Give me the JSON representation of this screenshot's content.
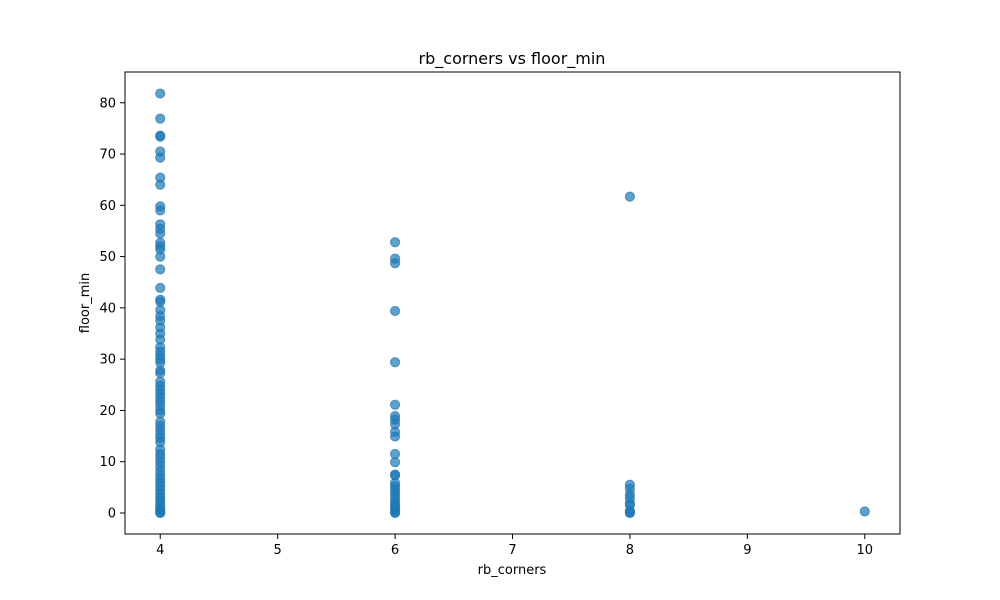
{
  "chart_data": {
    "type": "scatter",
    "title": "rb_corners vs floor_min",
    "xlabel": "rb_corners",
    "ylabel": "floor_min",
    "xlim": [
      3.7,
      10.3
    ],
    "ylim": [
      -4.1,
      86.0
    ],
    "xticks": [
      4,
      5,
      6,
      7,
      8,
      9,
      10
    ],
    "yticks": [
      0,
      10,
      20,
      30,
      40,
      50,
      60,
      70,
      80
    ],
    "grid": false,
    "marker_color": "#1f77b4",
    "marker_alpha": 0.7,
    "points": [
      {
        "x": 4,
        "y": 81.8
      },
      {
        "x": 4,
        "y": 76.9
      },
      {
        "x": 4,
        "y": 73.6
      },
      {
        "x": 4,
        "y": 73.4
      },
      {
        "x": 4,
        "y": 70.5
      },
      {
        "x": 4,
        "y": 69.3
      },
      {
        "x": 4,
        "y": 65.4
      },
      {
        "x": 4,
        "y": 64.0
      },
      {
        "x": 4,
        "y": 59.8
      },
      {
        "x": 4,
        "y": 59.0
      },
      {
        "x": 4,
        "y": 56.3
      },
      {
        "x": 4,
        "y": 55.4
      },
      {
        "x": 4,
        "y": 54.5
      },
      {
        "x": 4,
        "y": 52.7
      },
      {
        "x": 4,
        "y": 52.0
      },
      {
        "x": 4,
        "y": 51.4
      },
      {
        "x": 4,
        "y": 50.0
      },
      {
        "x": 4,
        "y": 47.5
      },
      {
        "x": 4,
        "y": 43.9
      },
      {
        "x": 4,
        "y": 41.6
      },
      {
        "x": 4,
        "y": 41.2
      },
      {
        "x": 4,
        "y": 39.6
      },
      {
        "x": 4,
        "y": 38.4
      },
      {
        "x": 4,
        "y": 37.5
      },
      {
        "x": 4,
        "y": 36.2
      },
      {
        "x": 4,
        "y": 35.0
      },
      {
        "x": 4,
        "y": 33.8
      },
      {
        "x": 4,
        "y": 32.3
      },
      {
        "x": 4,
        "y": 31.5
      },
      {
        "x": 4,
        "y": 30.7
      },
      {
        "x": 4,
        "y": 30.0
      },
      {
        "x": 4,
        "y": 29.3
      },
      {
        "x": 4,
        "y": 27.8
      },
      {
        "x": 4,
        "y": 27.3
      },
      {
        "x": 4,
        "y": 25.6
      },
      {
        "x": 4,
        "y": 24.8
      },
      {
        "x": 4,
        "y": 24.0
      },
      {
        "x": 4,
        "y": 23.3
      },
      {
        "x": 4,
        "y": 22.5
      },
      {
        "x": 4,
        "y": 21.7
      },
      {
        "x": 4,
        "y": 20.9
      },
      {
        "x": 4,
        "y": 20.0
      },
      {
        "x": 4,
        "y": 19.4
      },
      {
        "x": 4,
        "y": 17.8
      },
      {
        "x": 4,
        "y": 17.0
      },
      {
        "x": 4,
        "y": 16.2
      },
      {
        "x": 4,
        "y": 15.3
      },
      {
        "x": 4,
        "y": 14.6
      },
      {
        "x": 4,
        "y": 13.8
      },
      {
        "x": 4,
        "y": 12.4
      },
      {
        "x": 4,
        "y": 11.5
      },
      {
        "x": 4,
        "y": 10.8
      },
      {
        "x": 4,
        "y": 9.9
      },
      {
        "x": 4,
        "y": 9.1
      },
      {
        "x": 4,
        "y": 8.2
      },
      {
        "x": 4,
        "y": 7.4
      },
      {
        "x": 4,
        "y": 6.6
      },
      {
        "x": 4,
        "y": 5.9
      },
      {
        "x": 4,
        "y": 5.2
      },
      {
        "x": 4,
        "y": 4.5
      },
      {
        "x": 4,
        "y": 3.8
      },
      {
        "x": 4,
        "y": 3.1
      },
      {
        "x": 4,
        "y": 2.5
      },
      {
        "x": 4,
        "y": 1.9
      },
      {
        "x": 4,
        "y": 1.3
      },
      {
        "x": 4,
        "y": 0.8
      },
      {
        "x": 4,
        "y": 0.4
      },
      {
        "x": 4,
        "y": 0.1
      },
      {
        "x": 4,
        "y": 0.0
      },
      {
        "x": 6,
        "y": 52.8
      },
      {
        "x": 6,
        "y": 49.6
      },
      {
        "x": 6,
        "y": 48.7
      },
      {
        "x": 6,
        "y": 39.4
      },
      {
        "x": 6,
        "y": 29.4
      },
      {
        "x": 6,
        "y": 21.1
      },
      {
        "x": 6,
        "y": 18.9
      },
      {
        "x": 6,
        "y": 18.2
      },
      {
        "x": 6,
        "y": 17.3
      },
      {
        "x": 6,
        "y": 15.8
      },
      {
        "x": 6,
        "y": 14.9
      },
      {
        "x": 6,
        "y": 11.5
      },
      {
        "x": 6,
        "y": 9.9
      },
      {
        "x": 6,
        "y": 7.5
      },
      {
        "x": 6,
        "y": 7.3
      },
      {
        "x": 6,
        "y": 5.8
      },
      {
        "x": 6,
        "y": 5.2
      },
      {
        "x": 6,
        "y": 4.6
      },
      {
        "x": 6,
        "y": 3.9
      },
      {
        "x": 6,
        "y": 3.3
      },
      {
        "x": 6,
        "y": 2.6
      },
      {
        "x": 6,
        "y": 2.0
      },
      {
        "x": 6,
        "y": 1.5
      },
      {
        "x": 6,
        "y": 1.0
      },
      {
        "x": 6,
        "y": 0.5
      },
      {
        "x": 6,
        "y": 0.2
      },
      {
        "x": 6,
        "y": 0.0
      },
      {
        "x": 8,
        "y": 61.7
      },
      {
        "x": 8,
        "y": 5.5
      },
      {
        "x": 8,
        "y": 4.7
      },
      {
        "x": 8,
        "y": 3.6
      },
      {
        "x": 8,
        "y": 2.9
      },
      {
        "x": 8,
        "y": 1.9
      },
      {
        "x": 8,
        "y": 1.5
      },
      {
        "x": 8,
        "y": 0.4
      },
      {
        "x": 8,
        "y": 0.1
      },
      {
        "x": 8,
        "y": 0.0
      },
      {
        "x": 10,
        "y": 0.3
      }
    ]
  }
}
